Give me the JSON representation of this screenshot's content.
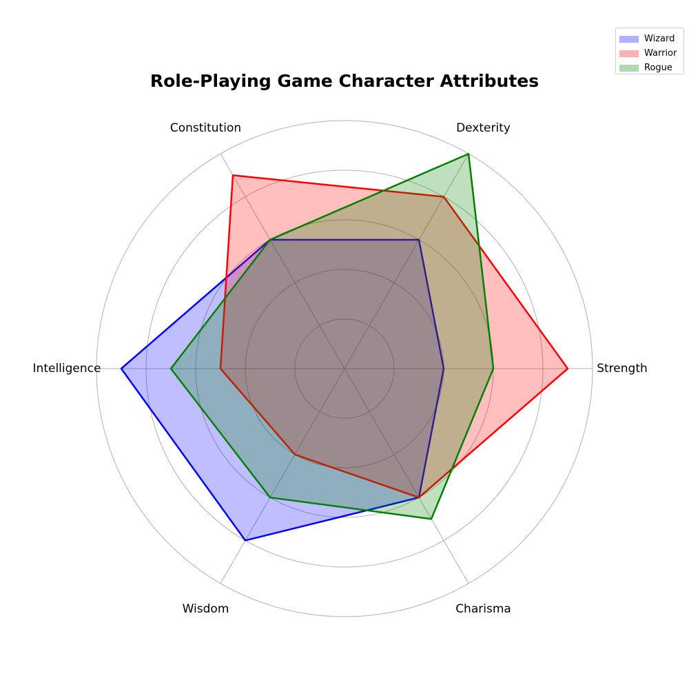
{
  "chart_data": {
    "type": "radar",
    "title": "Role-Playing Game Character Attributes",
    "categories": [
      "Strength",
      "Dexterity",
      "Constitution",
      "Intelligence",
      "Wisdom",
      "Charisma"
    ],
    "rlim": [
      0,
      10
    ],
    "grid": true,
    "legend_position": "top-right",
    "series": [
      {
        "name": "Wizard",
        "values": [
          4,
          6,
          6,
          9,
          8,
          6
        ],
        "color": "#0000ff"
      },
      {
        "name": "Warrior",
        "values": [
          9,
          8,
          9,
          5,
          4,
          6
        ],
        "color": "#ff0000"
      },
      {
        "name": "Rogue",
        "values": [
          6,
          10,
          6,
          7,
          6,
          7
        ],
        "color": "#008000"
      }
    ]
  }
}
